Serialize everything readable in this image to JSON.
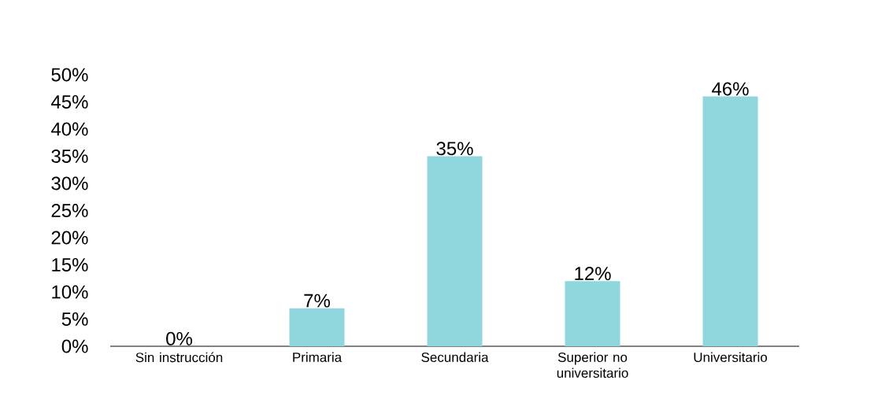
{
  "chart_data": {
    "type": "bar",
    "categories": [
      "Sin instrucción",
      "Primaria",
      "Secundaria",
      "Superior no universitario",
      "Universitario"
    ],
    "values": [
      0,
      7,
      35,
      12,
      46
    ],
    "value_labels": [
      "0%",
      "7%",
      "35%",
      "12%",
      "46%"
    ],
    "color": "#8fd6dd",
    "ylim": [
      0,
      50
    ],
    "yticks": [
      {
        "value": 0,
        "label": "0%"
      },
      {
        "value": 5,
        "label": "5%"
      },
      {
        "value": 10,
        "label": "10%"
      },
      {
        "value": 15,
        "label": "15%"
      },
      {
        "value": 20,
        "label": "20%"
      },
      {
        "value": 25,
        "label": "25%"
      },
      {
        "value": 30,
        "label": "30%"
      },
      {
        "value": 35,
        "label": "35%"
      },
      {
        "value": 40,
        "label": "40%"
      },
      {
        "value": 45,
        "label": "45%"
      },
      {
        "value": 50,
        "label": "50%"
      }
    ]
  }
}
